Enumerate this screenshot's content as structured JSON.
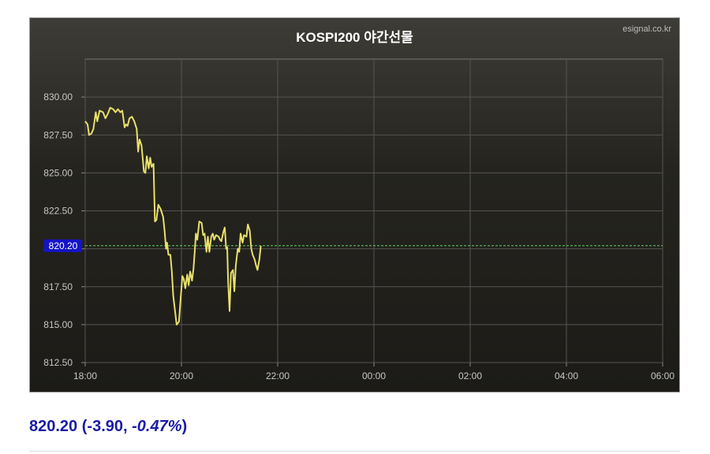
{
  "chart_data": {
    "type": "line",
    "title": "KOSPI200 야간선물",
    "source": "esignal.co.kr",
    "xlabel": "",
    "ylabel": "",
    "x_ticks": [
      "18:00",
      "20:00",
      "22:00",
      "00:00",
      "02:00",
      "04:00",
      "06:00"
    ],
    "x_range_hours": [
      0,
      12
    ],
    "y_ticks": [
      "812.50",
      "815.00",
      "817.50",
      "820.00",
      "822.50",
      "825.00",
      "827.50",
      "830.00"
    ],
    "ylim": [
      812.5,
      832.5
    ],
    "grid": true,
    "current_value": 820.2,
    "current_value_label": "820.20",
    "line_color": "#e8e06a",
    "reference_line_color": "#5fd35f",
    "series": [
      {
        "values": [
          [
            0.0,
            828.4
          ],
          [
            0.05,
            828.2
          ],
          [
            0.08,
            827.5
          ],
          [
            0.13,
            827.6
          ],
          [
            0.17,
            827.9
          ],
          [
            0.22,
            829.0
          ],
          [
            0.25,
            828.4
          ],
          [
            0.3,
            829.1
          ],
          [
            0.37,
            829.0
          ],
          [
            0.42,
            828.6
          ],
          [
            0.47,
            828.9
          ],
          [
            0.52,
            829.3
          ],
          [
            0.58,
            829.2
          ],
          [
            0.63,
            829.0
          ],
          [
            0.68,
            829.2
          ],
          [
            0.73,
            829.0
          ],
          [
            0.77,
            829.1
          ],
          [
            0.82,
            828.0
          ],
          [
            0.85,
            828.2
          ],
          [
            0.88,
            828.1
          ],
          [
            0.92,
            828.6
          ],
          [
            0.97,
            828.7
          ],
          [
            1.02,
            828.4
          ],
          [
            1.07,
            827.9
          ],
          [
            1.1,
            826.4
          ],
          [
            1.13,
            827.2
          ],
          [
            1.17,
            826.8
          ],
          [
            1.22,
            825.1
          ],
          [
            1.25,
            825.0
          ],
          [
            1.28,
            826.1
          ],
          [
            1.32,
            825.3
          ],
          [
            1.35,
            826.0
          ],
          [
            1.38,
            825.4
          ],
          [
            1.42,
            825.6
          ],
          [
            1.45,
            821.8
          ],
          [
            1.48,
            821.9
          ],
          [
            1.52,
            822.9
          ],
          [
            1.57,
            822.6
          ],
          [
            1.62,
            822.1
          ],
          [
            1.65,
            821.2
          ],
          [
            1.68,
            820.0
          ],
          [
            1.7,
            820.4
          ],
          [
            1.73,
            819.6
          ],
          [
            1.77,
            819.6
          ],
          [
            1.8,
            818.5
          ],
          [
            1.83,
            816.9
          ],
          [
            1.87,
            815.8
          ],
          [
            1.9,
            815.0
          ],
          [
            1.95,
            815.2
          ],
          [
            1.98,
            816.6
          ],
          [
            2.02,
            818.2
          ],
          [
            2.05,
            818.0
          ],
          [
            2.08,
            817.4
          ],
          [
            2.12,
            818.3
          ],
          [
            2.15,
            817.6
          ],
          [
            2.18,
            818.5
          ],
          [
            2.22,
            817.9
          ],
          [
            2.25,
            818.7
          ],
          [
            2.28,
            820.0
          ],
          [
            2.3,
            821.0
          ],
          [
            2.33,
            820.6
          ],
          [
            2.37,
            821.8
          ],
          [
            2.42,
            821.7
          ],
          [
            2.45,
            820.9
          ],
          [
            2.48,
            821.0
          ],
          [
            2.52,
            819.8
          ],
          [
            2.55,
            820.8
          ],
          [
            2.58,
            819.8
          ],
          [
            2.62,
            820.8
          ],
          [
            2.65,
            821.0
          ],
          [
            2.68,
            820.6
          ],
          [
            2.72,
            820.9
          ],
          [
            2.77,
            820.8
          ],
          [
            2.8,
            820.6
          ],
          [
            2.83,
            820.5
          ],
          [
            2.87,
            821.1
          ],
          [
            2.9,
            821.4
          ],
          [
            2.93,
            820.0
          ],
          [
            2.95,
            820.1
          ],
          [
            2.97,
            817.8
          ],
          [
            3.0,
            815.9
          ],
          [
            3.03,
            818.4
          ],
          [
            3.07,
            818.6
          ],
          [
            3.1,
            817.2
          ],
          [
            3.13,
            818.9
          ],
          [
            3.17,
            820.0
          ],
          [
            3.2,
            819.8
          ],
          [
            3.23,
            821.0
          ],
          [
            3.27,
            820.4
          ],
          [
            3.3,
            820.9
          ],
          [
            3.35,
            820.8
          ],
          [
            3.38,
            821.6
          ],
          [
            3.42,
            821.2
          ],
          [
            3.45,
            820.0
          ],
          [
            3.48,
            819.6
          ],
          [
            3.52,
            819.3
          ],
          [
            3.55,
            818.9
          ],
          [
            3.58,
            818.6
          ],
          [
            3.62,
            819.3
          ],
          [
            3.65,
            820.2
          ]
        ]
      }
    ]
  },
  "quote": {
    "price": "820.20",
    "change": "-3.90",
    "change_pct": "-0.47%"
  }
}
